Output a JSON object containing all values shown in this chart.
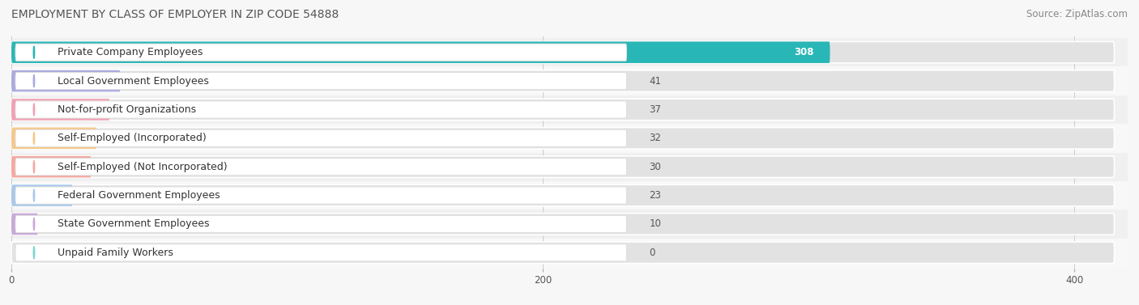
{
  "title": "EMPLOYMENT BY CLASS OF EMPLOYER IN ZIP CODE 54888",
  "source": "Source: ZipAtlas.com",
  "categories": [
    "Private Company Employees",
    "Local Government Employees",
    "Not-for-profit Organizations",
    "Self-Employed (Incorporated)",
    "Self-Employed (Not Incorporated)",
    "Federal Government Employees",
    "State Government Employees",
    "Unpaid Family Workers"
  ],
  "values": [
    308,
    41,
    37,
    32,
    30,
    23,
    10,
    0
  ],
  "bar_colors": [
    "#29b6b6",
    "#aaaae0",
    "#f2a0b5",
    "#f5c88a",
    "#f5a8a0",
    "#a8c8ea",
    "#c8a8d8",
    "#7dd4cc"
  ],
  "row_bg_colors": [
    "#f0f0f0",
    "#f8f8f8"
  ],
  "xlim": [
    0,
    420
  ],
  "xticks": [
    0,
    200,
    400
  ],
  "background_color": "#f7f7f7",
  "bar_bg_color": "#e2e2e2",
  "title_fontsize": 10,
  "source_fontsize": 8.5,
  "label_fontsize": 9,
  "value_fontsize": 8.5,
  "value_color_inside": "white",
  "value_color_outside": "#555555"
}
